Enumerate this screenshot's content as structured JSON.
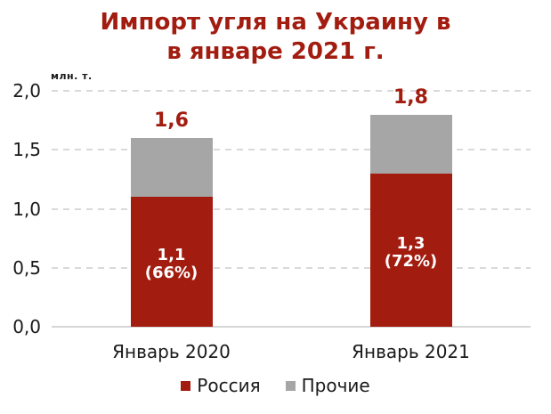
{
  "chart_data": {
    "type": "bar",
    "stacked": true,
    "title_lines": [
      "Импорт угля на Украину в",
      "в январе 2021 г."
    ],
    "title_color": "#a21c10",
    "unit_label": "млн. т.",
    "categories": [
      "Январь 2020",
      "Январь 2021"
    ],
    "series": [
      {
        "name": "Россия",
        "color": "#a21c10",
        "values": [
          1.1,
          1.3
        ],
        "segment_labels": [
          "1,1\n(66%)",
          "1,3\n(72%)"
        ]
      },
      {
        "name": "Прочие",
        "color": "#a6a6a6",
        "values": [
          0.5,
          0.5
        ],
        "segment_labels": [
          "",
          ""
        ]
      }
    ],
    "totals": [
      1.6,
      1.8
    ],
    "total_labels": [
      "1,6",
      "1,8"
    ],
    "total_label_color": "#a21c10",
    "ylim": [
      0,
      2
    ],
    "yticks": [
      {
        "value": 0.0,
        "label": "0,0"
      },
      {
        "value": 0.5,
        "label": "0,5"
      },
      {
        "value": 1.0,
        "label": "1,0"
      },
      {
        "value": 1.5,
        "label": "1,5"
      },
      {
        "value": 2.0,
        "label": "2,0"
      }
    ],
    "grid": "dashed-horizontal",
    "gridline_color": "#d9d9d9",
    "legend": {
      "position": "bottom",
      "entries": [
        {
          "label": "Россия",
          "color": "#a21c10"
        },
        {
          "label": "Прочие",
          "color": "#a6a6a6"
        }
      ]
    }
  }
}
